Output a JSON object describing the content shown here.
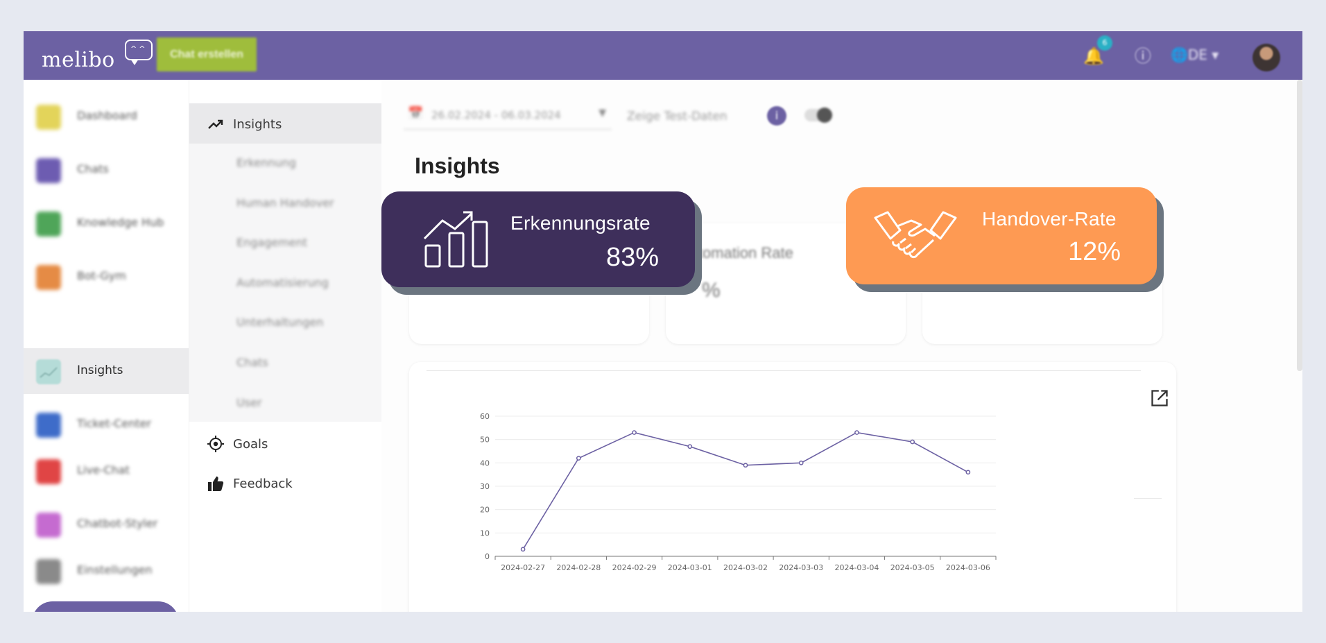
{
  "header": {
    "logo_text": "melibo",
    "create_chat_label": "Chat erstellen",
    "notification_count": "6",
    "language_label": "DE"
  },
  "sidebar": {
    "items": [
      {
        "label": "Dashboard",
        "color": "#e3d45a"
      },
      {
        "label": "Chats",
        "color": "#6d5cb1"
      },
      {
        "label": "Knowledge Hub",
        "color": "#4fa559"
      },
      {
        "label": "Bot-Gym",
        "color": "#e58b45"
      },
      {
        "label": "Insights",
        "color": "#b5dcd8"
      },
      {
        "label": "Ticket-Center",
        "color": "#3e6cc9"
      },
      {
        "label": "Live-Chat",
        "color": "#e04545"
      },
      {
        "label": "Chatbot-Styler",
        "color": "#c56bd0"
      },
      {
        "label": "Einstellungen",
        "color": "#8a8a8a"
      }
    ]
  },
  "subnav": {
    "insights_label": "Insights",
    "children": [
      "Erkennung",
      "Human Handover",
      "Engagement",
      "Automatisierung",
      "Unterhaltungen",
      "Chats",
      "User"
    ],
    "goals_label": "Goals",
    "feedback_label": "Feedback"
  },
  "filters": {
    "date_range": "26.02.2024 - 06.03.2024",
    "test_data_label": "Zeige Test-Daten"
  },
  "main": {
    "title": "Insights",
    "background_card_title": "Automation Rate",
    "background_card_value": "%"
  },
  "kpis": {
    "recognition": {
      "title": "Erkennungsrate",
      "value": "83%",
      "color": "#3e2f5b"
    },
    "handover": {
      "title": "Handover-Rate",
      "value": "12%",
      "color": "#fe9a53"
    }
  },
  "chart_data": {
    "type": "line",
    "categories": [
      "2024-02-27",
      "2024-02-28",
      "2024-02-29",
      "2024-03-01",
      "2024-03-02",
      "2024-03-03",
      "2024-03-04",
      "2024-03-05",
      "2024-03-06"
    ],
    "values": [
      3,
      42,
      53,
      47,
      39,
      40,
      53,
      49,
      36
    ],
    "yticks": [
      0,
      10,
      20,
      30,
      40,
      50,
      60
    ],
    "ylim": [
      0,
      60
    ],
    "title": "",
    "xlabel": "",
    "ylabel": "",
    "grid": true,
    "line_color": "#6c61a3"
  }
}
